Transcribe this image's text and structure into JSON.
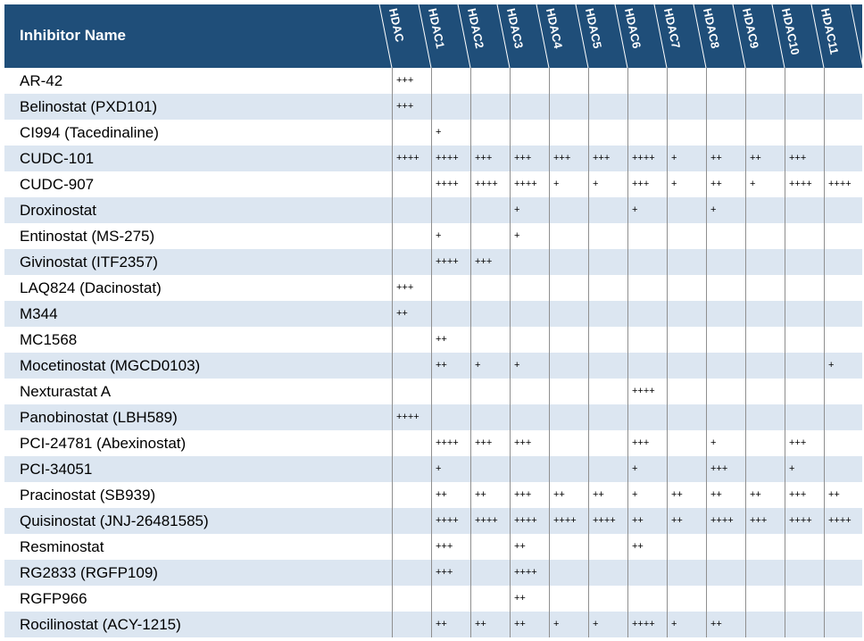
{
  "table": {
    "header": {
      "name_label": "Inhibitor Name",
      "columns": [
        "HDAC",
        "HDAC1",
        "HDAC2",
        "HDAC3",
        "HDAC4",
        "HDAC5",
        "HDAC6",
        "HDAC7",
        "HDAC8",
        "HDAC9",
        "HDAC10",
        "HDAC11"
      ],
      "bg_color": "#1f4e79"
    },
    "band_color": "#dce6f1",
    "rows": [
      {
        "name": "AR-42",
        "values": [
          "+++",
          "",
          "",
          "",
          "",
          "",
          "",
          "",
          "",
          "",
          "",
          ""
        ]
      },
      {
        "name": "Belinostat (PXD101)",
        "values": [
          "+++",
          "",
          "",
          "",
          "",
          "",
          "",
          "",
          "",
          "",
          "",
          ""
        ]
      },
      {
        "name": "CI994 (Tacedinaline)",
        "values": [
          "",
          "+",
          "",
          "",
          "",
          "",
          "",
          "",
          "",
          "",
          "",
          ""
        ]
      },
      {
        "name": "CUDC-101",
        "values": [
          "++++",
          "++++",
          "+++",
          "+++",
          "+++",
          "+++",
          "++++",
          "+",
          "++",
          "++",
          "+++",
          ""
        ]
      },
      {
        "name": "CUDC-907",
        "values": [
          "",
          "++++",
          "++++",
          "++++",
          "+",
          "+",
          "+++",
          "+",
          "++",
          "+",
          "++++",
          "++++"
        ]
      },
      {
        "name": "Droxinostat",
        "values": [
          "",
          "",
          "",
          "+",
          "",
          "",
          "+",
          "",
          "+",
          "",
          "",
          ""
        ]
      },
      {
        "name": "Entinostat (MS-275)",
        "values": [
          "",
          "+",
          "",
          "+",
          "",
          "",
          "",
          "",
          "",
          "",
          "",
          ""
        ]
      },
      {
        "name": "Givinostat (ITF2357)",
        "values": [
          "",
          "++++",
          "+++",
          "",
          "",
          "",
          "",
          "",
          "",
          "",
          "",
          ""
        ]
      },
      {
        "name": "LAQ824 (Dacinostat)",
        "values": [
          "+++",
          "",
          "",
          "",
          "",
          "",
          "",
          "",
          "",
          "",
          "",
          ""
        ]
      },
      {
        "name": "M344",
        "values": [
          "++",
          "",
          "",
          "",
          "",
          "",
          "",
          "",
          "",
          "",
          "",
          ""
        ]
      },
      {
        "name": "MC1568",
        "values": [
          "",
          "++",
          "",
          "",
          "",
          "",
          "",
          "",
          "",
          "",
          "",
          ""
        ]
      },
      {
        "name": "Mocetinostat (MGCD0103)",
        "values": [
          "",
          "++",
          "+",
          "+",
          "",
          "",
          "",
          "",
          "",
          "",
          "",
          "+"
        ]
      },
      {
        "name": "Nexturastat A",
        "values": [
          "",
          "",
          "",
          "",
          "",
          "",
          "++++",
          "",
          "",
          "",
          "",
          ""
        ]
      },
      {
        "name": "Panobinostat (LBH589)",
        "values": [
          "++++",
          "",
          "",
          "",
          "",
          "",
          "",
          "",
          "",
          "",
          "",
          ""
        ]
      },
      {
        "name": "PCI-24781 (Abexinostat)",
        "values": [
          "",
          "++++",
          "+++",
          "+++",
          "",
          "",
          "+++",
          "",
          "+",
          "",
          "+++",
          ""
        ]
      },
      {
        "name": "PCI-34051",
        "values": [
          "",
          "+",
          "",
          "",
          "",
          "",
          "+",
          "",
          "+++",
          "",
          "+",
          ""
        ]
      },
      {
        "name": "Pracinostat (SB939)",
        "values": [
          "",
          "++",
          "++",
          "+++",
          "++",
          "++",
          "+",
          "++",
          "++",
          "++",
          "+++",
          "++"
        ]
      },
      {
        "name": "Quisinostat (JNJ-26481585)",
        "values": [
          "",
          "++++",
          "++++",
          "++++",
          "++++",
          "++++",
          "++",
          "++",
          "++++",
          "+++",
          "++++",
          "++++"
        ]
      },
      {
        "name": "Resminostat",
        "values": [
          "",
          "+++",
          "",
          "++",
          "",
          "",
          "++",
          "",
          "",
          "",
          "",
          ""
        ]
      },
      {
        "name": "RG2833 (RGFP109)",
        "values": [
          "",
          "+++",
          "",
          "++++",
          "",
          "",
          "",
          "",
          "",
          "",
          "",
          ""
        ]
      },
      {
        "name": "RGFP966",
        "values": [
          "",
          "",
          "",
          "++",
          "",
          "",
          "",
          "",
          "",
          "",
          "",
          ""
        ]
      },
      {
        "name": "Rocilinostat (ACY-1215)",
        "values": [
          "",
          "++",
          "++",
          "++",
          "+",
          "+",
          "++++",
          "+",
          "++",
          "",
          "",
          ""
        ]
      }
    ]
  }
}
